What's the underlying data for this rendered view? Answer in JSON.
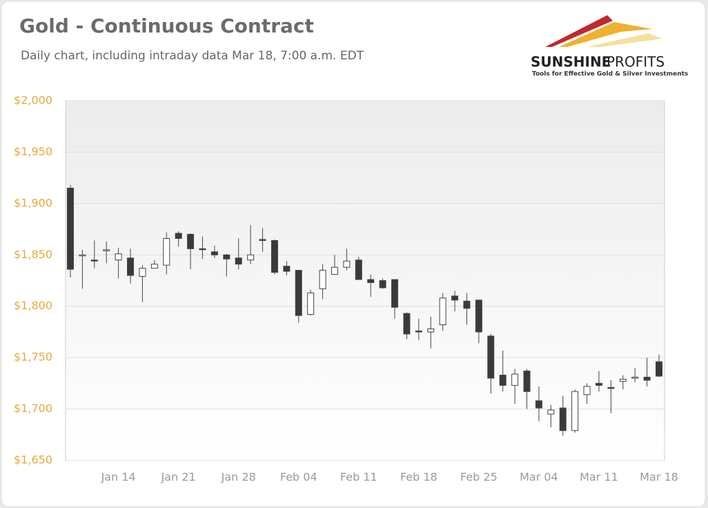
{
  "chart_data": {
    "type": "candlestick",
    "title": "Gold - Continuous Contract",
    "subtitle": "Daily chart, including intraday data Mar 18, 7:00 a.m. EDT",
    "logo": {
      "bold": "SUNSHINE",
      "light": "PROFITS",
      "tagline": "Tools for Effective Gold & Silver Investments"
    },
    "categories": [
      null,
      null,
      null,
      null,
      "Jan 14",
      null,
      null,
      null,
      null,
      "Jan 21",
      null,
      null,
      null,
      null,
      "Jan 28",
      null,
      null,
      null,
      null,
      "Feb 04",
      null,
      null,
      null,
      null,
      "Feb 11",
      null,
      null,
      null,
      null,
      "Feb 18",
      null,
      null,
      null,
      null,
      "Feb 25",
      null,
      null,
      null,
      null,
      "Mar 04",
      null,
      null,
      null,
      null,
      "Mar 11",
      null,
      null,
      null,
      null,
      "Mar 18"
    ],
    "open": [
      1915,
      1849,
      1845,
      1854,
      1845,
      1847,
      1829,
      1837,
      1840,
      1871,
      1870,
      1856,
      1853,
      1850,
      1847,
      1845,
      1865,
      1864,
      1839,
      1835,
      1792,
      1817,
      1831,
      1838,
      1845,
      1826,
      1825,
      1826,
      1793,
      1776,
      1775,
      1782,
      1810,
      1805,
      1806,
      1771,
      1733,
      1723,
      1737,
      1708,
      1695,
      1701,
      1679,
      1714,
      1725,
      1721,
      1727,
      1730,
      1731,
      1746
    ],
    "high": [
      1918,
      1855,
      1864,
      1863,
      1857,
      1856,
      1840,
      1845,
      1872,
      1873,
      1871,
      1868,
      1859,
      1851,
      1866,
      1879,
      1876,
      1865,
      1844,
      1835,
      1816,
      1841,
      1850,
      1856,
      1848,
      1831,
      1827,
      1826,
      1794,
      1788,
      1790,
      1813,
      1815,
      1813,
      1806,
      1773,
      1757,
      1739,
      1739,
      1722,
      1704,
      1713,
      1719,
      1725,
      1737,
      1728,
      1733,
      1740,
      1750,
      1753
    ],
    "low": [
      1828,
      1817,
      1837,
      1842,
      1827,
      1822,
      1804,
      1837,
      1831,
      1858,
      1836,
      1846,
      1847,
      1829,
      1836,
      1841,
      1853,
      1831,
      1830,
      1784,
      1791,
      1807,
      1831,
      1835,
      1826,
      1809,
      1817,
      1788,
      1768,
      1767,
      1759,
      1776,
      1795,
      1782,
      1764,
      1715,
      1717,
      1705,
      1700,
      1688,
      1682,
      1674,
      1677,
      1705,
      1717,
      1696,
      1719,
      1726,
      1722,
      1731
    ],
    "close": [
      1836,
      1850,
      1844,
      1855,
      1851,
      1830,
      1837,
      1841,
      1866,
      1866,
      1856,
      1855,
      1850,
      1846,
      1841,
      1850,
      1864,
      1833,
      1834,
      1791,
      1813,
      1835,
      1838,
      1844,
      1826,
      1823,
      1818,
      1799,
      1773,
      1775,
      1778,
      1808,
      1806,
      1798,
      1775,
      1730,
      1723,
      1734,
      1717,
      1701,
      1699,
      1679,
      1717,
      1722,
      1723,
      1720,
      1729,
      1731,
      1728,
      1732
    ],
    "up_color": "#ffffff",
    "down_color": "#3a3a3a",
    "ylim": [
      1650,
      2000
    ],
    "yticks": [
      {
        "value": 1650,
        "label": "$1,650"
      },
      {
        "value": 1700,
        "label": "$1,700"
      },
      {
        "value": 1750,
        "label": "$1,750"
      },
      {
        "value": 1800,
        "label": "$1,800"
      },
      {
        "value": 1850,
        "label": "$1,850"
      },
      {
        "value": 1900,
        "label": "$1,900"
      },
      {
        "value": 1950,
        "label": "$1,950"
      },
      {
        "value": 2000,
        "label": "$2,000"
      }
    ],
    "grid": true
  }
}
